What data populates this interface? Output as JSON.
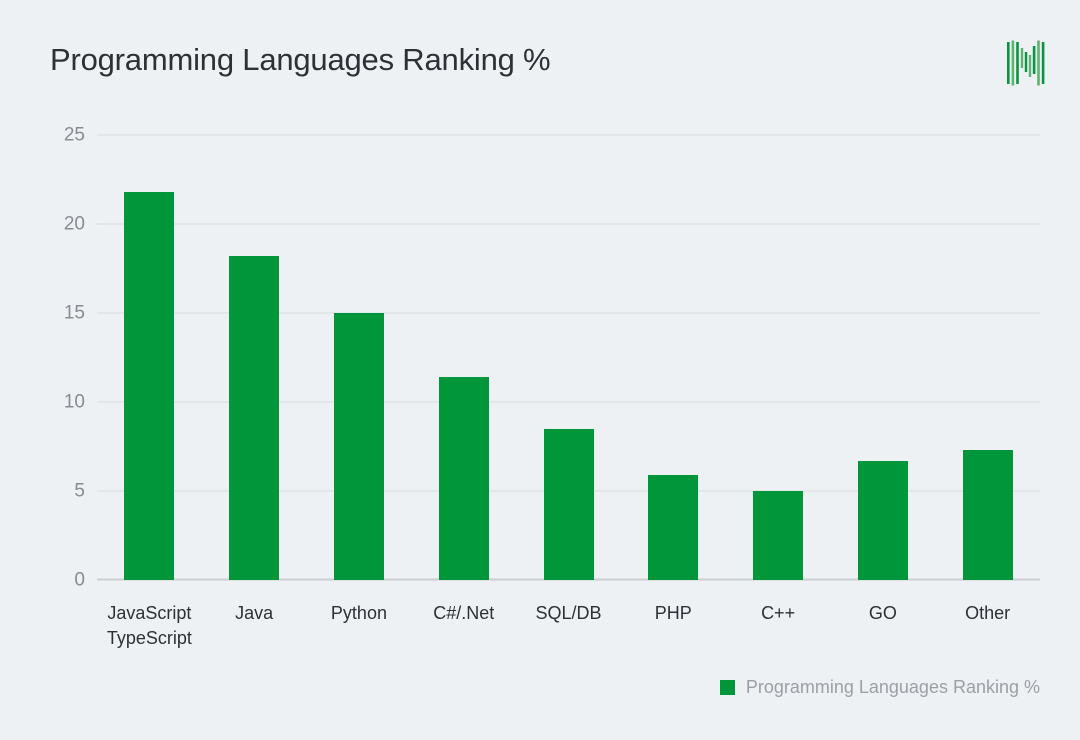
{
  "header": {
    "logo_icon": "waveform-logo"
  },
  "chart_data": {
    "type": "bar",
    "title": "Programming Languages Ranking %",
    "categories": [
      "JavaScript\nTypeScript",
      "Java",
      "Python",
      "C#/.Net",
      "SQL/DB",
      "PHP",
      "C++",
      "GO",
      "Other"
    ],
    "values": [
      21.8,
      18.2,
      15.0,
      11.4,
      8.5,
      5.9,
      5.0,
      6.7,
      7.3
    ],
    "xlabel": "",
    "ylabel": "",
    "ylim": [
      0,
      25
    ],
    "yticks": [
      0,
      5,
      10,
      15,
      20,
      25
    ],
    "grid": "horizontal",
    "legend_position": "bottom-right",
    "legend": {
      "label": "Programming Languages Ranking %"
    },
    "colors": {
      "bar": "#009639",
      "background": "#edf1f4",
      "gridline": "#d8dbde",
      "axis_line": "#ccd0d4",
      "title_text": "#2d3136",
      "tick_text": "#878c92",
      "legend_text": "#9aa0a5",
      "logo_green_dark": "#0a9440",
      "logo_green_light": "#5cb46e"
    }
  }
}
